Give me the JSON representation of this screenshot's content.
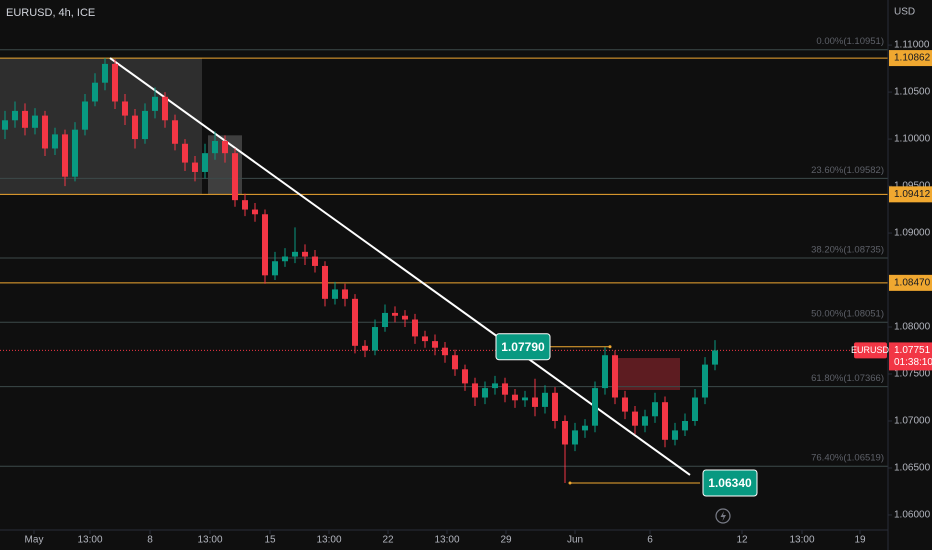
{
  "chart_data": {
    "type": "candlestick",
    "title": "EURUSD, 4h, ICE",
    "y_axis_label": "USD",
    "x": [
      0,
      1,
      2,
      3,
      4,
      5,
      6,
      7,
      8,
      9,
      10,
      11,
      12,
      13,
      14,
      15,
      16,
      17,
      18,
      19,
      20,
      21,
      22,
      23,
      24,
      25,
      26,
      27,
      28,
      29,
      30,
      31,
      32,
      33,
      34,
      35,
      36,
      37,
      38,
      39,
      40,
      41,
      42,
      43,
      44,
      45,
      46,
      47,
      48,
      49,
      50,
      51,
      52,
      53,
      54,
      55,
      56,
      57,
      58,
      59,
      60,
      61,
      62,
      63,
      64,
      65,
      66,
      67,
      68,
      69,
      70,
      71
    ],
    "open": [
      1.101,
      1.102,
      1.103,
      1.1012,
      1.1025,
      1.099,
      1.1005,
      1.096,
      1.101,
      1.104,
      1.106,
      1.108,
      1.104,
      1.1025,
      1.1,
      1.103,
      1.1045,
      1.102,
      1.0995,
      1.0975,
      1.0965,
      1.0985,
      1.0998,
      1.0985,
      1.0935,
      1.0925,
      1.092,
      1.0855,
      1.087,
      1.0875,
      1.088,
      1.0875,
      1.0865,
      1.083,
      1.084,
      1.083,
      1.078,
      1.0775,
      1.08,
      1.0815,
      1.0812,
      1.0808,
      1.079,
      1.0785,
      1.0778,
      1.077,
      1.0755,
      1.074,
      1.0725,
      1.0735,
      1.074,
      1.0728,
      1.0722,
      1.0725,
      1.0715,
      1.073,
      1.07,
      1.0675,
      1.069,
      1.0695,
      1.0735,
      1.077,
      1.0725,
      1.071,
      1.0695,
      1.0705,
      1.072,
      1.068,
      1.069,
      1.07,
      1.0725,
      1.076
    ],
    "high": [
      1.103,
      1.104,
      1.1038,
      1.1033,
      1.103,
      1.1012,
      1.101,
      1.1018,
      1.1048,
      1.107,
      1.10862,
      1.1085,
      1.1048,
      1.1032,
      1.1038,
      1.1055,
      1.105,
      1.1026,
      1.1,
      1.0982,
      1.0995,
      1.1008,
      1.1004,
      1.099,
      1.0942,
      1.0932,
      1.0925,
      1.088,
      1.0884,
      1.0906,
      1.0888,
      1.0882,
      1.087,
      1.0848,
      1.0846,
      1.0835,
      1.0786,
      1.0808,
      1.0824,
      1.0822,
      1.0818,
      1.0814,
      1.0796,
      1.0792,
      1.0784,
      1.0776,
      1.076,
      1.0746,
      1.0742,
      1.0748,
      1.0746,
      1.0734,
      1.0732,
      1.0745,
      1.0738,
      1.0736,
      1.0706,
      1.0698,
      1.0702,
      1.0742,
      1.0779,
      1.0775,
      1.0732,
      1.0716,
      1.0712,
      1.073,
      1.0726,
      1.0698,
      1.0708,
      1.0734,
      1.0768,
      1.0786
    ],
    "low": [
      1.1,
      1.1012,
      1.1004,
      1.1005,
      1.0982,
      1.0983,
      1.095,
      1.0955,
      1.1004,
      1.1035,
      1.1052,
      1.1032,
      1.1015,
      1.099,
      1.0995,
      1.1022,
      1.1012,
      1.0988,
      1.0966,
      1.0955,
      1.0958,
      1.0978,
      1.0975,
      1.0928,
      1.0918,
      1.0912,
      1.0846,
      1.085,
      1.0864,
      1.0868,
      1.0866,
      1.0858,
      1.0822,
      1.0824,
      1.0822,
      1.0772,
      1.0768,
      1.077,
      1.0795,
      1.0805,
      1.08,
      1.0782,
      1.0778,
      1.077,
      1.0762,
      1.0748,
      1.0732,
      1.0716,
      1.0718,
      1.0728,
      1.072,
      1.0714,
      1.0715,
      1.0705,
      1.0708,
      1.0692,
      1.0634,
      1.0668,
      1.0682,
      1.0688,
      1.0728,
      1.0718,
      1.0702,
      1.0686,
      1.0688,
      1.0698,
      1.0672,
      1.0674,
      1.0684,
      1.0695,
      1.0718,
      1.0754
    ],
    "close": [
      1.102,
      1.103,
      1.1012,
      1.1025,
      1.099,
      1.1005,
      1.096,
      1.101,
      1.104,
      1.106,
      1.108,
      1.104,
      1.1025,
      1.1,
      1.103,
      1.1045,
      1.102,
      1.0995,
      1.0975,
      1.0965,
      1.0985,
      1.0998,
      1.0985,
      1.0935,
      1.0925,
      1.092,
      1.0855,
      1.087,
      1.0875,
      1.088,
      1.0875,
      1.0865,
      1.083,
      1.084,
      1.083,
      1.078,
      1.0775,
      1.08,
      1.0815,
      1.0812,
      1.0808,
      1.079,
      1.0785,
      1.0778,
      1.077,
      1.0755,
      1.074,
      1.0725,
      1.0735,
      1.074,
      1.0728,
      1.0722,
      1.0725,
      1.0715,
      1.073,
      1.07,
      1.0675,
      1.069,
      1.0695,
      1.0735,
      1.077,
      1.0725,
      1.071,
      1.0695,
      1.0705,
      1.072,
      1.068,
      1.069,
      1.07,
      1.0725,
      1.076,
      1.07751
    ],
    "up_color": "#089981",
    "down_color": "#f23645",
    "xlim": [
      -0.5,
      88.3
    ],
    "ylim": [
      1.0584,
      1.1148
    ],
    "xticks": [
      {
        "value": 2.9,
        "label": "May"
      },
      {
        "value": 8.5,
        "label": "13:00"
      },
      {
        "value": 14.5,
        "label": "8"
      },
      {
        "value": 20.5,
        "label": "13:00"
      },
      {
        "value": 26.5,
        "label": "15"
      },
      {
        "value": 32.4,
        "label": "13:00"
      },
      {
        "value": 38.3,
        "label": "22"
      },
      {
        "value": 44.2,
        "label": "13:00"
      },
      {
        "value": 50.1,
        "label": "29"
      },
      {
        "value": 57,
        "label": "Jun"
      },
      {
        "value": 64.5,
        "label": "6"
      },
      {
        "value": 73.7,
        "label": "12"
      },
      {
        "value": 79.7,
        "label": "13:00"
      },
      {
        "value": 85.5,
        "label": "19"
      }
    ],
    "yticks": [
      {
        "value": 1.11,
        "label": "1.11000"
      },
      {
        "value": 1.105,
        "label": "1.10500"
      },
      {
        "value": 1.1,
        "label": "1.10000"
      },
      {
        "value": 1.095,
        "label": "1.09500"
      },
      {
        "value": 1.09,
        "label": "1.09000"
      },
      {
        "value": 1.08,
        "label": "1.08000"
      },
      {
        "value": 1.075,
        "label": "1.07500"
      },
      {
        "value": 1.07,
        "label": "1.07000"
      },
      {
        "value": 1.065,
        "label": "1.06500"
      },
      {
        "value": 1.06,
        "label": "1.06000"
      }
    ],
    "levels": [
      {
        "value": 1.10862,
        "label": "1.10862"
      },
      {
        "value": 1.09412,
        "label": "1.09412"
      },
      {
        "value": 1.0847,
        "label": "1.08470"
      }
    ],
    "level_color": "#f0a830",
    "fib_levels": [
      {
        "value": 1.10951,
        "label": "0.00%(1.10951)"
      },
      {
        "value": 1.09582,
        "label": "23.60%(1.09582)"
      },
      {
        "value": 1.08735,
        "label": "38.20%(1.08735)"
      },
      {
        "value": 1.08051,
        "label": "50.00%(1.08051)"
      },
      {
        "value": 1.07366,
        "label": "61.80%(1.07366)"
      },
      {
        "value": 1.06519,
        "label": "76.40%(1.06519)"
      }
    ],
    "current_price": {
      "name": "EURUSD",
      "value": 1.07751,
      "label": "1.07751",
      "countdown": "01:38:10"
    },
    "trendline": {
      "x": [
        10.5,
        68.5
      ],
      "y": [
        1.10862,
        1.06426
      ]
    },
    "zones": [
      {
        "x": [
          -0.5,
          19.7
        ],
        "y": [
          1.10862,
          1.09412
        ],
        "color": "rgba(255,255,255,0.13)"
      },
      {
        "x": [
          20.3,
          23.7
        ],
        "y": [
          1.1004,
          1.09412
        ],
        "color": "rgba(255,255,255,0.2)"
      },
      {
        "x": [
          60.7,
          67.5
        ],
        "y": [
          1.0767,
          1.0733
        ],
        "color": "rgba(242,54,69,0.35)"
      }
    ],
    "annotations": [
      {
        "value": 1.0779,
        "label": "1.07790",
        "x": [
          54.5,
          60.5
        ]
      },
      {
        "value": 1.0634,
        "label": "1.06340",
        "x": [
          56.5,
          69.5
        ]
      }
    ]
  }
}
